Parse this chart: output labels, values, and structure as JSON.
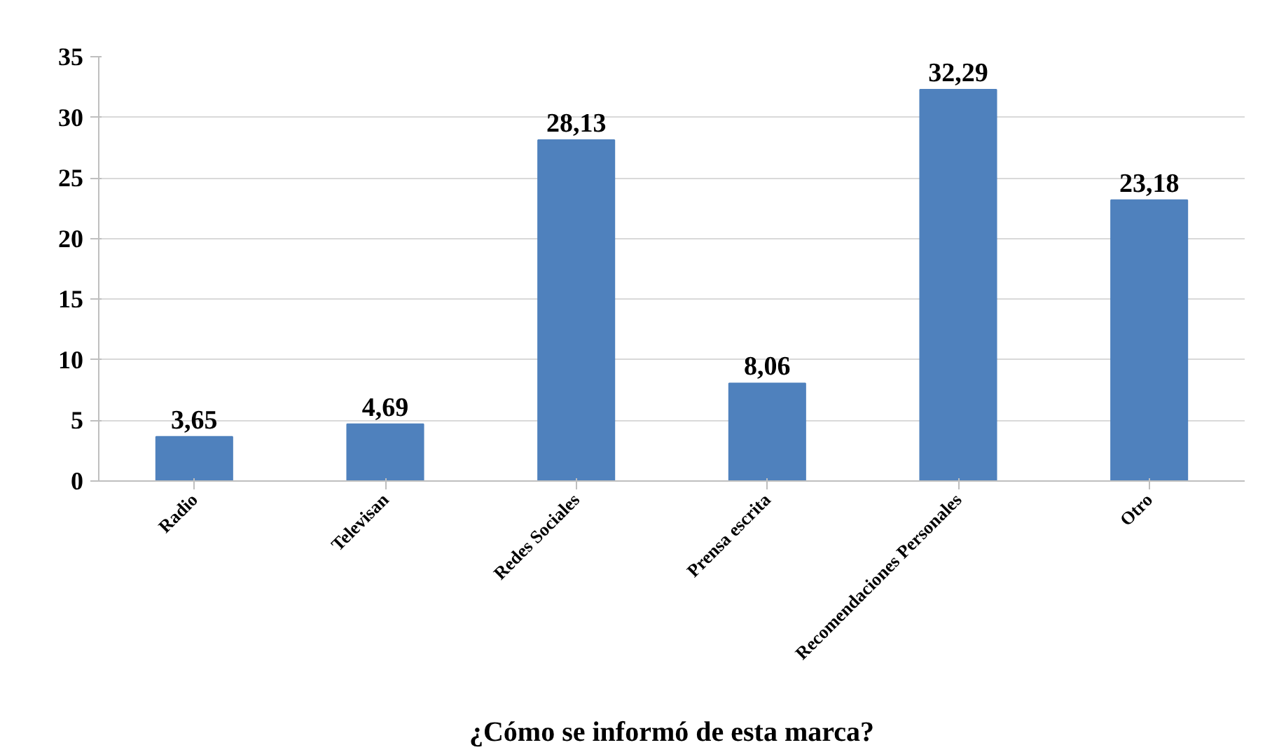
{
  "chart_data": {
    "type": "bar",
    "xlabel": "¿Cómo se informó de esta marca?",
    "categories": [
      "Radio",
      "Televisan",
      "Redes Sociales",
      "Prensa escrita",
      "Recomendaciones Personales",
      "Otro"
    ],
    "values": [
      3.65,
      4.69,
      28.13,
      8.06,
      32.29,
      23.18
    ],
    "value_labels": [
      "3,65",
      "4,69",
      "28,13",
      "8,06",
      "32,29",
      "23,18"
    ],
    "color": "#4f81bd",
    "ylim": [
      0,
      35
    ],
    "yticks": [
      0,
      5,
      10,
      15,
      20,
      25,
      30,
      35
    ],
    "grid": "y"
  }
}
